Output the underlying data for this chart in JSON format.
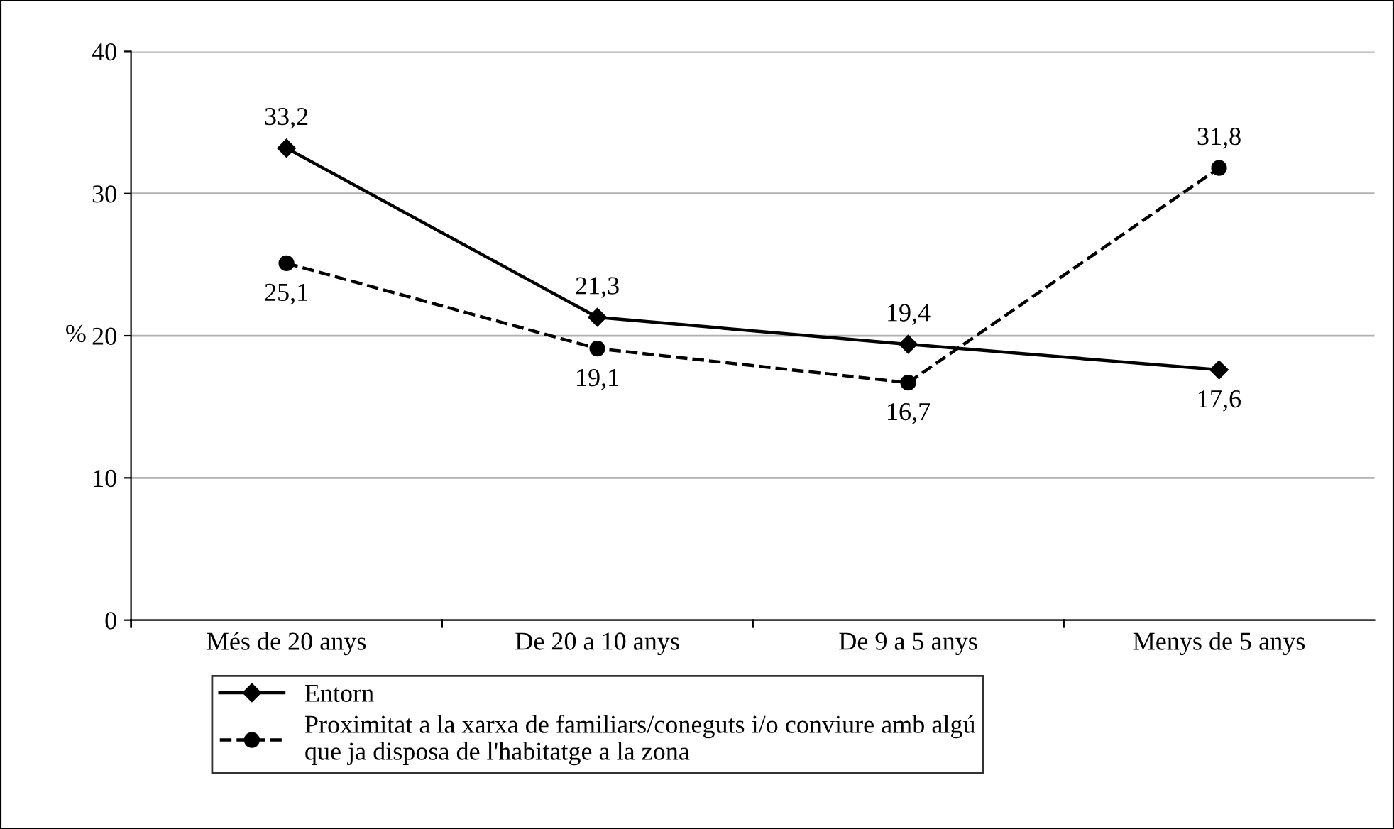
{
  "chart_data": {
    "type": "line",
    "ylabel": "%",
    "categories": [
      "Més de 20 anys",
      "De 20 a 10 anys",
      "De 9 a 5 anys",
      "Menys de 5 anys"
    ],
    "series": [
      {
        "name": "Entorn",
        "color": "#000000",
        "values": [
          33.2,
          21.3,
          19.4,
          17.6
        ],
        "value_labels": [
          "33,2",
          "21,3",
          "19,4",
          "17,6"
        ],
        "marker": "diamond",
        "line_style": "solid"
      },
      {
        "name": "Proximitat a la xarxa de familiars/coneguts i/o conviure amb algú\nque ja disposa de l'habitatge a la zona",
        "color": "#000000",
        "values": [
          25.1,
          19.1,
          16.7,
          31.8
        ],
        "value_labels": [
          "25,1",
          "19,1",
          "16,7",
          "31,8"
        ],
        "marker": "circle",
        "line_style": "dashed"
      }
    ],
    "ylim": [
      0,
      40
    ],
    "yticks": [
      0,
      10,
      20,
      30,
      40
    ],
    "grid": "y",
    "legend": "bottom"
  }
}
